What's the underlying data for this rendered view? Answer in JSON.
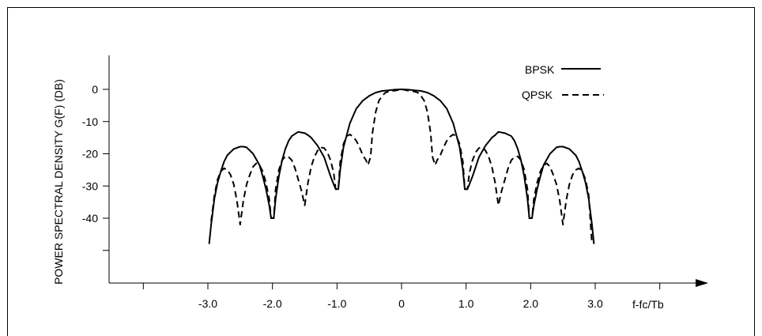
{
  "chart_data": {
    "type": "line",
    "title": "",
    "ylabel": "POWER SPECTRAL DENSITY G(F) (DB)",
    "xlabel": "f-fc/Tb",
    "xlim": [
      -4.0,
      4.3
    ],
    "ylim": [
      -62,
      10
    ],
    "x_ticks": [
      -4.0,
      -3.0,
      -2.0,
      -1.0,
      0,
      1.0,
      2.0,
      3.0,
      4.0
    ],
    "x_tick_labels": [
      "",
      "-3.0",
      "-2.0",
      "-1.0",
      "0",
      "1.0",
      "2.0",
      "3.0",
      ""
    ],
    "y_ticks": [
      0,
      -10,
      -20,
      -30,
      -40,
      -50
    ],
    "y_tick_labels": [
      "0",
      "-10",
      "-20",
      "-30",
      "-40",
      ""
    ],
    "grid": false,
    "legend_position": "top-right",
    "series": [
      {
        "name": "BPSK",
        "style": "solid",
        "x": [
          -2.98,
          -2.95,
          -2.9,
          -2.85,
          -2.8,
          -2.75,
          -2.7,
          -2.6,
          -2.5,
          -2.45,
          -2.4,
          -2.3,
          -2.2,
          -2.15,
          -2.1,
          -2.05,
          -2.02,
          -1.98,
          -1.95,
          -1.9,
          -1.85,
          -1.8,
          -1.75,
          -1.7,
          -1.6,
          -1.5,
          -1.45,
          -1.4,
          -1.3,
          -1.2,
          -1.15,
          -1.1,
          -1.05,
          -1.02,
          -0.98,
          -0.95,
          -0.9,
          -0.8,
          -0.7,
          -0.6,
          -0.5,
          -0.4,
          -0.3,
          -0.2,
          -0.1,
          0,
          0.1,
          0.2,
          0.3,
          0.4,
          0.5,
          0.6,
          0.7,
          0.8,
          0.9,
          0.95,
          0.98,
          1.02,
          1.05,
          1.1,
          1.15,
          1.2,
          1.3,
          1.4,
          1.45,
          1.5,
          1.6,
          1.7,
          1.75,
          1.8,
          1.85,
          1.9,
          1.95,
          1.98,
          2.02,
          2.05,
          2.1,
          2.15,
          2.2,
          2.3,
          2.4,
          2.45,
          2.5,
          2.6,
          2.7,
          2.75,
          2.8,
          2.85,
          2.9,
          2.95,
          2.98
        ],
        "values": [
          -48,
          -42,
          -34,
          -29,
          -25.5,
          -22.5,
          -20.5,
          -18.5,
          -17.8,
          -17.8,
          -18,
          -20,
          -23.5,
          -27,
          -31,
          -36,
          -40,
          -40,
          -34,
          -27,
          -22,
          -18.5,
          -16,
          -14.5,
          -13.2,
          -13.6,
          -14.2,
          -15,
          -17.5,
          -21,
          -24,
          -27,
          -29.5,
          -31,
          -31,
          -25,
          -18,
          -10.5,
          -6,
          -3.5,
          -2,
          -1,
          -0.5,
          -0.3,
          -0.1,
          0,
          -0.1,
          -0.3,
          -0.5,
          -1,
          -2,
          -3.5,
          -6,
          -10.5,
          -18,
          -25,
          -31,
          -31,
          -29.5,
          -27,
          -24,
          -21,
          -17.5,
          -15,
          -14.2,
          -13.2,
          -13.6,
          -14.5,
          -16,
          -18.5,
          -22,
          -27,
          -34,
          -40,
          -40,
          -36,
          -31,
          -27,
          -23.5,
          -20,
          -18,
          -17.8,
          -17.8,
          -18.5,
          -20.5,
          -22.5,
          -25.5,
          -29,
          -34,
          -42,
          -48
        ]
      },
      {
        "name": "QPSK",
        "style": "dashed",
        "x": [
          -2.95,
          -2.9,
          -2.85,
          -2.8,
          -2.75,
          -2.7,
          -2.65,
          -2.6,
          -2.55,
          -2.5,
          -2.45,
          -2.4,
          -2.35,
          -2.3,
          -2.25,
          -2.2,
          -2.15,
          -2.1,
          -2.05,
          -2.02,
          -1.98,
          -1.95,
          -1.9,
          -1.85,
          -1.8,
          -1.75,
          -1.7,
          -1.65,
          -1.6,
          -1.55,
          -1.5,
          -1.45,
          -1.4,
          -1.35,
          -1.3,
          -1.25,
          -1.2,
          -1.15,
          -1.1,
          -1.05,
          -1.02,
          -0.98,
          -0.95,
          -0.9,
          -0.85,
          -0.8,
          -0.75,
          -0.7,
          -0.65,
          -0.6,
          -0.55,
          -0.52,
          -0.48,
          -0.45,
          -0.4,
          -0.35,
          -0.3,
          -0.25,
          -0.2,
          -0.15,
          -0.1,
          -0.05,
          0,
          0.05,
          0.1,
          0.15,
          0.2,
          0.25,
          0.3,
          0.35,
          0.4,
          0.45,
          0.48,
          0.52,
          0.55,
          0.6,
          0.65,
          0.7,
          0.75,
          0.8,
          0.85,
          0.9,
          0.95,
          0.98,
          1.02,
          1.05,
          1.1,
          1.15,
          1.2,
          1.25,
          1.3,
          1.35,
          1.4,
          1.45,
          1.5,
          1.55,
          1.6,
          1.65,
          1.7,
          1.75,
          1.8,
          1.85,
          1.9,
          1.95,
          1.98,
          2.02,
          2.05,
          2.1,
          2.15,
          2.2,
          2.25,
          2.3,
          2.35,
          2.4,
          2.45,
          2.5,
          2.55,
          2.6,
          2.65,
          2.7,
          2.75,
          2.8,
          2.85,
          2.9,
          2.95
        ],
        "values": [
          -41,
          -33,
          -28,
          -25.5,
          -24.5,
          -25,
          -26.5,
          -29.5,
          -34.5,
          -42,
          -34.5,
          -29.5,
          -26.5,
          -24,
          -23,
          -23.5,
          -25.5,
          -29,
          -34,
          -40,
          -40,
          -31,
          -25,
          -22,
          -20.8,
          -21,
          -22,
          -24.5,
          -28,
          -31.5,
          -36,
          -29,
          -24,
          -21,
          -19,
          -18,
          -18.2,
          -19.5,
          -22,
          -26,
          -31,
          -31,
          -22.5,
          -17,
          -14.5,
          -14,
          -14.7,
          -16,
          -18,
          -20.5,
          -22,
          -23.5,
          -21,
          -13.5,
          -7,
          -3.5,
          -2,
          -1,
          -0.7,
          -0.5,
          -0.4,
          -0.2,
          0,
          -0.2,
          -0.4,
          -0.5,
          -0.7,
          -1,
          -2,
          -3.5,
          -7,
          -13.5,
          -21,
          -23.5,
          -22,
          -20.5,
          -18,
          -16,
          -14.7,
          -14,
          -14.5,
          -17,
          -22.5,
          -31,
          -31,
          -26,
          -22,
          -19.5,
          -18.2,
          -18,
          -19,
          -21,
          -24,
          -29,
          -36,
          -31.5,
          -28,
          -24.5,
          -22,
          -21,
          -20.8,
          -22,
          -25,
          -31,
          -40,
          -40,
          -34,
          -29,
          -25.5,
          -23.5,
          -23,
          -24,
          -26.5,
          -29.5,
          -34.5,
          -42,
          -34.5,
          -29.5,
          -26.5,
          -25,
          -24.5,
          -25.5,
          -28,
          -33,
          -48
        ]
      }
    ]
  }
}
